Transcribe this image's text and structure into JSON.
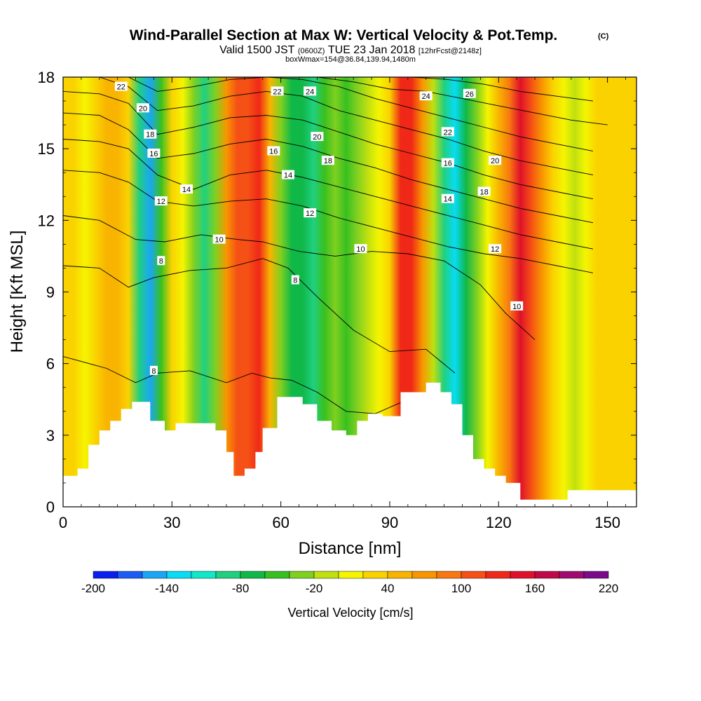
{
  "title": "Wind-Parallel Section at Max W: Vertical Velocity & Pot.Temp.",
  "title_tag": "(C)",
  "subtitle": {
    "part1": "Valid 1500 JST",
    "part2": "(0600Z)",
    "part3": "TUE 23 Jan 2018",
    "part4": "[12hrFcst@2148z]"
  },
  "subtitle2": "boxWmax=154@36.84,139.94,1480m",
  "colorbar": {
    "title": "Vertical Velocity [cm/s]",
    "tick_labels": [
      "-200",
      "-140",
      "-80",
      "-20",
      "40",
      "100",
      "160",
      "220"
    ],
    "colors": [
      "#0a1ef0",
      "#1c5cf5",
      "#1aa6f5",
      "#08dcf5",
      "#10e8c8",
      "#20d080",
      "#10b848",
      "#38c020",
      "#80d020",
      "#c0e010",
      "#f5f500",
      "#fad200",
      "#f8b400",
      "#f89600",
      "#f77810",
      "#f55015",
      "#f02818",
      "#e0102a",
      "#c00848",
      "#a00a70",
      "#7a0a8a"
    ]
  },
  "chart_data": {
    "type": "heatmap",
    "title": "Wind-Parallel Section at Max W: Vertical Velocity & Pot.Temp.",
    "xlabel": "Distance [nm]",
    "ylabel": "Height [Kft MSL]",
    "xlim": [
      0,
      158
    ],
    "ylim": [
      0,
      18
    ],
    "xticks": [
      0,
      30,
      60,
      90,
      120,
      150
    ],
    "yticks": [
      0,
      3,
      6,
      9,
      12,
      15,
      18
    ],
    "vertical_velocity_columns": [
      {
        "x": 0,
        "w": 20
      },
      {
        "x": 3,
        "w": 20
      },
      {
        "x": 6,
        "w": 10
      },
      {
        "x": 9,
        "w": 20
      },
      {
        "x": 12,
        "w": 40
      },
      {
        "x": 15,
        "w": 40
      },
      {
        "x": 18,
        "w": 30
      },
      {
        "x": 21,
        "w": -100
      },
      {
        "x": 24,
        "w": -150
      },
      {
        "x": 27,
        "w": -60
      },
      {
        "x": 30,
        "w": 20
      },
      {
        "x": 33,
        "w": 10
      },
      {
        "x": 36,
        "w": -40
      },
      {
        "x": 39,
        "w": -90
      },
      {
        "x": 42,
        "w": -40
      },
      {
        "x": 45,
        "w": 60
      },
      {
        "x": 48,
        "w": 100
      },
      {
        "x": 51,
        "w": 110
      },
      {
        "x": 54,
        "w": 130
      },
      {
        "x": 57,
        "w": 40
      },
      {
        "x": 60,
        "w": -30
      },
      {
        "x": 63,
        "w": -70
      },
      {
        "x": 66,
        "w": -80
      },
      {
        "x": 69,
        "w": -90
      },
      {
        "x": 72,
        "w": -60
      },
      {
        "x": 75,
        "w": -30
      },
      {
        "x": 78,
        "w": -50
      },
      {
        "x": 81,
        "w": -40
      },
      {
        "x": 84,
        "w": -20
      },
      {
        "x": 87,
        "w": 0
      },
      {
        "x": 90,
        "w": 30
      },
      {
        "x": 93,
        "w": 120
      },
      {
        "x": 96,
        "w": 130
      },
      {
        "x": 99,
        "w": 60
      },
      {
        "x": 102,
        "w": -20
      },
      {
        "x": 105,
        "w": -90
      },
      {
        "x": 108,
        "w": -130
      },
      {
        "x": 111,
        "w": -70
      },
      {
        "x": 114,
        "w": -30
      },
      {
        "x": 117,
        "w": 10
      },
      {
        "x": 120,
        "w": 40
      },
      {
        "x": 123,
        "w": 80
      },
      {
        "x": 126,
        "w": 150
      },
      {
        "x": 129,
        "w": 110
      },
      {
        "x": 132,
        "w": 60
      },
      {
        "x": 135,
        "w": 30
      },
      {
        "x": 138,
        "w": 10
      },
      {
        "x": 141,
        "w": -10
      },
      {
        "x": 144,
        "w": 10
      },
      {
        "x": 147,
        "w": 20
      },
      {
        "x": 150,
        "w": 30
      },
      {
        "x": 153,
        "w": 30
      },
      {
        "x": 156,
        "w": 30
      },
      {
        "x": 158,
        "w": 30
      }
    ],
    "terrain": [
      [
        0,
        1.3
      ],
      [
        4,
        1.6
      ],
      [
        7,
        2.6
      ],
      [
        10,
        3.2
      ],
      [
        13,
        3.6
      ],
      [
        16,
        4.1
      ],
      [
        19,
        4.4
      ],
      [
        24,
        3.6
      ],
      [
        28,
        3.2
      ],
      [
        31,
        3.5
      ],
      [
        37,
        3.5
      ],
      [
        42,
        3.2
      ],
      [
        45,
        2.3
      ],
      [
        47,
        1.3
      ],
      [
        50,
        1.6
      ],
      [
        53,
        2.3
      ],
      [
        55,
        3.3
      ],
      [
        59,
        4.6
      ],
      [
        66,
        4.3
      ],
      [
        70,
        3.6
      ],
      [
        74,
        3.2
      ],
      [
        78,
        3.0
      ],
      [
        81,
        3.6
      ],
      [
        84,
        3.9
      ],
      [
        88,
        3.8
      ],
      [
        93,
        4.8
      ],
      [
        100,
        5.2
      ],
      [
        104,
        4.8
      ],
      [
        107,
        4.3
      ],
      [
        110,
        3.0
      ],
      [
        113,
        2.0
      ],
      [
        116,
        1.6
      ],
      [
        119,
        1.3
      ],
      [
        122,
        1.0
      ],
      [
        126,
        0.3
      ],
      [
        133,
        0.3
      ],
      [
        139,
        0.7
      ],
      [
        158,
        0.7
      ]
    ],
    "potential_temperature_contours": [
      {
        "label": "8",
        "points": [
          [
            0,
            6.3
          ],
          [
            12,
            5.8
          ],
          [
            20,
            5.2
          ],
          [
            26,
            5.6
          ],
          [
            35,
            5.7
          ],
          [
            45,
            5.2
          ],
          [
            52,
            5.6
          ],
          [
            57,
            5.4
          ],
          [
            63,
            5.3
          ],
          [
            70,
            4.8
          ],
          [
            78,
            4.0
          ],
          [
            86,
            3.9
          ],
          [
            95,
            4.5
          ],
          [
            105,
            4.7
          ]
        ]
      },
      {
        "label": "8",
        "points": [
          [
            0,
            10.1
          ],
          [
            10,
            10.0
          ],
          [
            18,
            9.2
          ],
          [
            25,
            9.6
          ],
          [
            35,
            9.9
          ],
          [
            45,
            10.0
          ],
          [
            55,
            10.4
          ],
          [
            62,
            10.0
          ],
          [
            70,
            8.8
          ],
          [
            80,
            7.4
          ],
          [
            90,
            6.5
          ],
          [
            100,
            6.6
          ],
          [
            108,
            5.6
          ]
        ]
      },
      {
        "label": "10",
        "points": [
          [
            0,
            12.2
          ],
          [
            10,
            12.0
          ],
          [
            20,
            11.2
          ],
          [
            28,
            11.1
          ],
          [
            38,
            11.4
          ],
          [
            48,
            11.2
          ],
          [
            55,
            11.1
          ],
          [
            65,
            10.7
          ],
          [
            75,
            10.5
          ],
          [
            85,
            10.7
          ],
          [
            95,
            10.6
          ],
          [
            105,
            10.3
          ],
          [
            115,
            9.3
          ],
          [
            122,
            8.1
          ],
          [
            130,
            7.0
          ]
        ]
      },
      {
        "label": "12",
        "points": [
          [
            0,
            14.1
          ],
          [
            10,
            14.0
          ],
          [
            18,
            13.6
          ],
          [
            26,
            12.8
          ],
          [
            36,
            12.6
          ],
          [
            46,
            12.8
          ],
          [
            56,
            12.9
          ],
          [
            66,
            12.6
          ],
          [
            76,
            12.1
          ],
          [
            86,
            11.7
          ],
          [
            96,
            11.3
          ],
          [
            106,
            10.9
          ],
          [
            116,
            10.6
          ],
          [
            126,
            10.4
          ],
          [
            136,
            10.1
          ],
          [
            146,
            9.8
          ]
        ]
      },
      {
        "label": "14",
        "points": [
          [
            0,
            15.4
          ],
          [
            10,
            15.3
          ],
          [
            18,
            15.0
          ],
          [
            26,
            13.9
          ],
          [
            36,
            13.3
          ],
          [
            46,
            13.9
          ],
          [
            56,
            14.1
          ],
          [
            66,
            13.8
          ],
          [
            76,
            13.4
          ],
          [
            86,
            13.0
          ],
          [
            96,
            12.6
          ],
          [
            106,
            12.2
          ],
          [
            116,
            11.8
          ],
          [
            126,
            11.4
          ],
          [
            136,
            11.1
          ],
          [
            146,
            10.8
          ]
        ]
      },
      {
        "label": "16",
        "points": [
          [
            0,
            16.5
          ],
          [
            10,
            16.4
          ],
          [
            18,
            15.8
          ],
          [
            26,
            14.6
          ],
          [
            36,
            14.8
          ],
          [
            46,
            15.2
          ],
          [
            56,
            15.4
          ],
          [
            66,
            15.1
          ],
          [
            76,
            14.6
          ],
          [
            86,
            14.2
          ],
          [
            96,
            13.7
          ],
          [
            106,
            13.3
          ],
          [
            116,
            12.9
          ],
          [
            126,
            12.5
          ],
          [
            136,
            12.2
          ],
          [
            146,
            11.9
          ]
        ]
      },
      {
        "label": "18",
        "points": [
          [
            0,
            17.4
          ],
          [
            10,
            17.3
          ],
          [
            18,
            16.9
          ],
          [
            26,
            15.6
          ],
          [
            36,
            15.9
          ],
          [
            46,
            16.3
          ],
          [
            56,
            16.4
          ],
          [
            66,
            16.2
          ],
          [
            76,
            15.7
          ],
          [
            86,
            15.2
          ],
          [
            96,
            14.8
          ],
          [
            106,
            14.4
          ],
          [
            116,
            13.9
          ],
          [
            126,
            13.5
          ],
          [
            136,
            13.2
          ],
          [
            146,
            12.9
          ]
        ]
      },
      {
        "label": "20",
        "points": [
          [
            0,
            18.1
          ],
          [
            10,
            18.0
          ],
          [
            18,
            17.6
          ],
          [
            26,
            16.6
          ],
          [
            36,
            16.8
          ],
          [
            46,
            17.2
          ],
          [
            56,
            17.4
          ],
          [
            66,
            17.2
          ],
          [
            76,
            16.6
          ],
          [
            86,
            16.2
          ],
          [
            96,
            15.8
          ],
          [
            106,
            15.4
          ],
          [
            116,
            14.9
          ],
          [
            126,
            14.5
          ],
          [
            136,
            14.2
          ],
          [
            146,
            13.9
          ]
        ]
      },
      {
        "label": "22",
        "points": [
          [
            18,
            18.0
          ],
          [
            26,
            17.4
          ],
          [
            36,
            17.6
          ],
          [
            46,
            17.9
          ],
          [
            56,
            18.0
          ],
          [
            66,
            17.9
          ],
          [
            76,
            17.6
          ],
          [
            86,
            17.1
          ],
          [
            96,
            16.7
          ],
          [
            106,
            16.3
          ],
          [
            116,
            15.9
          ],
          [
            126,
            15.5
          ],
          [
            136,
            15.2
          ],
          [
            146,
            14.9
          ]
        ]
      },
      {
        "label": "24",
        "points": [
          [
            58,
            18.0
          ],
          [
            70,
            18.0
          ],
          [
            80,
            17.8
          ],
          [
            90,
            17.5
          ],
          [
            100,
            17.4
          ],
          [
            110,
            17.1
          ],
          [
            120,
            16.8
          ],
          [
            130,
            16.5
          ],
          [
            140,
            16.2
          ],
          [
            150,
            16.0
          ]
        ]
      },
      {
        "label": "26",
        "points": [
          [
            96,
            18.0
          ],
          [
            106,
            17.9
          ],
          [
            116,
            17.7
          ],
          [
            126,
            17.4
          ],
          [
            136,
            17.2
          ],
          [
            146,
            17.0
          ]
        ]
      }
    ],
    "contour_labels": [
      {
        "text": "22",
        "x": 16,
        "y": 17.6
      },
      {
        "text": "20",
        "x": 22,
        "y": 16.7
      },
      {
        "text": "18",
        "x": 24,
        "y": 15.6
      },
      {
        "text": "16",
        "x": 25,
        "y": 14.8
      },
      {
        "text": "14",
        "x": 34,
        "y": 13.3
      },
      {
        "text": "12",
        "x": 27,
        "y": 12.8
      },
      {
        "text": "10",
        "x": 43,
        "y": 11.2
      },
      {
        "text": "8",
        "x": 27,
        "y": 10.3
      },
      {
        "text": "8",
        "x": 25,
        "y": 5.7
      },
      {
        "text": "22",
        "x": 59,
        "y": 17.4
      },
      {
        "text": "24",
        "x": 68,
        "y": 17.4
      },
      {
        "text": "20",
        "x": 70,
        "y": 15.5
      },
      {
        "text": "16",
        "x": 58,
        "y": 14.9
      },
      {
        "text": "18",
        "x": 73,
        "y": 14.5
      },
      {
        "text": "14",
        "x": 62,
        "y": 13.9
      },
      {
        "text": "12",
        "x": 68,
        "y": 12.3
      },
      {
        "text": "8",
        "x": 64,
        "y": 9.5
      },
      {
        "text": "10",
        "x": 82,
        "y": 10.8
      },
      {
        "text": "24",
        "x": 100,
        "y": 17.2
      },
      {
        "text": "26",
        "x": 112,
        "y": 17.3
      },
      {
        "text": "22",
        "x": 106,
        "y": 15.7
      },
      {
        "text": "16",
        "x": 106,
        "y": 14.4
      },
      {
        "text": "20",
        "x": 119,
        "y": 14.5
      },
      {
        "text": "14",
        "x": 106,
        "y": 12.9
      },
      {
        "text": "18",
        "x": 116,
        "y": 13.2
      },
      {
        "text": "12",
        "x": 119,
        "y": 10.8
      },
      {
        "text": "10",
        "x": 125,
        "y": 8.4
      }
    ]
  }
}
